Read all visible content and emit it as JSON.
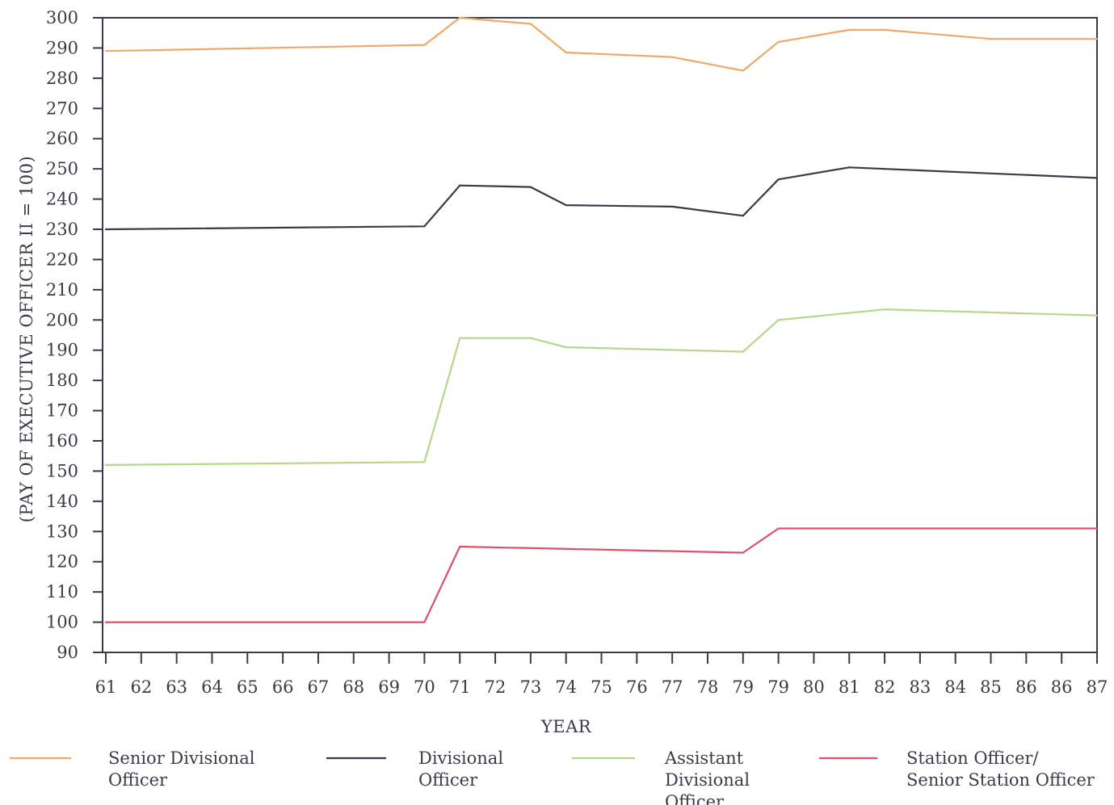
{
  "chart_data": {
    "type": "line",
    "title": "",
    "xlabel": "YEAR",
    "ylabel": "(PAY OF EXECUTIVE OFFICER II = 100)",
    "ylim": [
      90,
      300
    ],
    "yticks": [
      90,
      100,
      110,
      120,
      130,
      140,
      150,
      160,
      170,
      180,
      190,
      200,
      210,
      220,
      230,
      240,
      250,
      260,
      270,
      280,
      290,
      300
    ],
    "categories": [
      "61",
      "62",
      "63",
      "64",
      "65",
      "66",
      "67",
      "68",
      "69",
      "70",
      "71",
      "72",
      "73",
      "74",
      "75",
      "76",
      "77",
      "78",
      "79",
      "79",
      "80",
      "81",
      "82",
      "83",
      "84",
      "85",
      "86",
      "86",
      "87"
    ],
    "grid": false,
    "legend_position": "bottom",
    "series": [
      {
        "name": "Senior Divisional Officer",
        "legend_lines": [
          "Senior Divisional",
          "Officer"
        ],
        "color": "#f0a868",
        "points": [
          {
            "i": 0,
            "y": 289
          },
          {
            "i": 9,
            "y": 291
          },
          {
            "i": 10,
            "y": 300
          },
          {
            "i": 12,
            "y": 298
          },
          {
            "i": 13,
            "y": 288.5
          },
          {
            "i": 16,
            "y": 287
          },
          {
            "i": 18,
            "y": 282.5
          },
          {
            "i": 19,
            "y": 292
          },
          {
            "i": 21,
            "y": 296
          },
          {
            "i": 22,
            "y": 296
          },
          {
            "i": 25,
            "y": 293
          },
          {
            "i": 28,
            "y": 293
          }
        ]
      },
      {
        "name": "Divisional Officer",
        "legend_lines": [
          "Divisional",
          "Officer"
        ],
        "color": "#3a3a4a",
        "points": [
          {
            "i": 0,
            "y": 230
          },
          {
            "i": 9,
            "y": 231
          },
          {
            "i": 10,
            "y": 244.5
          },
          {
            "i": 12,
            "y": 244
          },
          {
            "i": 13,
            "y": 238
          },
          {
            "i": 16,
            "y": 237.5
          },
          {
            "i": 18,
            "y": 234.5
          },
          {
            "i": 19,
            "y": 246.5
          },
          {
            "i": 21,
            "y": 250.5
          },
          {
            "i": 28,
            "y": 247
          }
        ]
      },
      {
        "name": "Assistant Divisional Officer",
        "legend_lines": [
          "Assistant",
          "Divisional",
          "Officer"
        ],
        "color": "#b4d88a",
        "points": [
          {
            "i": 0,
            "y": 152
          },
          {
            "i": 9,
            "y": 153
          },
          {
            "i": 10,
            "y": 194
          },
          {
            "i": 12,
            "y": 194
          },
          {
            "i": 13,
            "y": 191
          },
          {
            "i": 18,
            "y": 189.5
          },
          {
            "i": 19,
            "y": 200
          },
          {
            "i": 22,
            "y": 203.5
          },
          {
            "i": 28,
            "y": 201.5
          }
        ]
      },
      {
        "name": "Station Officer/ Senior Station Officer",
        "legend_lines": [
          "Station Officer/",
          "Senior Station Officer"
        ],
        "color": "#e0506a",
        "points": [
          {
            "i": 0,
            "y": 100
          },
          {
            "i": 9,
            "y": 100
          },
          {
            "i": 10,
            "y": 125
          },
          {
            "i": 18,
            "y": 123
          },
          {
            "i": 19,
            "y": 131
          },
          {
            "i": 28,
            "y": 131
          }
        ]
      }
    ]
  }
}
